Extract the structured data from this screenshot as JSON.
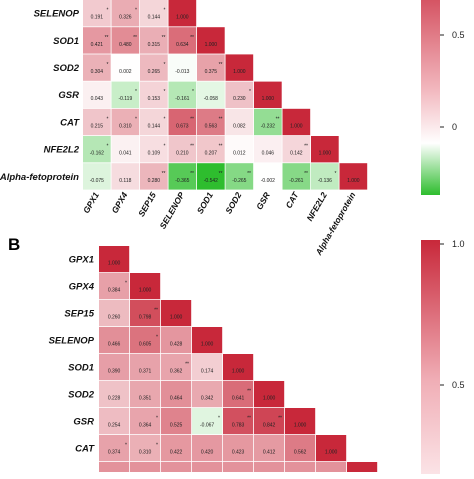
{
  "chart_data": [
    {
      "type": "heatmap",
      "panel_label": "",
      "row_labels": [
        "SELENOP",
        "SOD1",
        "SOD2",
        "GSR",
        "CAT",
        "NFE2L2",
        "Alpha-fetoprotein"
      ],
      "col_labels": [
        "GPX1",
        "GPX4",
        "SEP15",
        "SELENOP",
        "SOD1",
        "SOD2",
        "GSR",
        "CAT",
        "NFE2L2",
        "Alpha-fetoprotein"
      ],
      "rows": [
        {
          "values": [
            "0.191",
            "0.326",
            "0.144",
            "1.000"
          ],
          "stars": [
            "*",
            "*",
            "*",
            ""
          ]
        },
        {
          "values": [
            "0.421",
            "0.480",
            "0.315",
            "0.634",
            "1.000"
          ],
          "stars": [
            "**",
            "**",
            "**",
            "**",
            ""
          ]
        },
        {
          "values": [
            "0.304",
            "0.002",
            "0.265",
            "-0.013",
            "0.375",
            "1.000"
          ],
          "stars": [
            "*",
            "",
            "*",
            "",
            "**",
            ""
          ]
        },
        {
          "values": [
            "0.043",
            "-0.119",
            "0.153",
            "-0.161",
            "-0.058",
            "0.230",
            "1.000"
          ],
          "stars": [
            "",
            "*",
            "*",
            "*",
            "",
            "*",
            ""
          ]
        },
        {
          "values": [
            "0.215",
            "0.310",
            "0.144",
            "0.673",
            "0.563",
            "0.082",
            "-0.232",
            "1.000"
          ],
          "stars": [
            "*",
            "*",
            "*",
            "**",
            "**",
            "",
            "**",
            ""
          ]
        },
        {
          "values": [
            "-0.162",
            "0.041",
            "0.109",
            "0.210",
            "0.207",
            "0.012",
            "0.046",
            "0.142",
            "1.000"
          ],
          "stars": [
            "*",
            "",
            "*",
            "**",
            "**",
            "",
            "",
            "**",
            ""
          ]
        },
        {
          "values": [
            "-0.075",
            "0.118",
            "0.280",
            "-0.365",
            "-0.542",
            "-0.265",
            "-0.002",
            "-0.261",
            "-0.136",
            "1.000"
          ],
          "stars": [
            "",
            "",
            "**",
            "**",
            "**",
            "**",
            "",
            "**",
            "*",
            ""
          ]
        }
      ],
      "colorbar": {
        "ticks": [
          "0.5",
          "0"
        ],
        "colors": {
          "high": "#c8283a",
          "mid": "#ffffff",
          "low": "#2ebd2e"
        }
      }
    },
    {
      "type": "heatmap",
      "panel_label": "B",
      "row_labels": [
        "GPX1",
        "GPX4",
        "SEP15",
        "SELENOP",
        "SOD1",
        "SOD2",
        "GSR",
        "CAT"
      ],
      "col_labels": [],
      "rows": [
        {
          "values": [
            "1.000"
          ],
          "stars": [
            ""
          ]
        },
        {
          "values": [
            "0.384",
            "1.000"
          ],
          "stars": [
            "*",
            ""
          ]
        },
        {
          "values": [
            "0.260",
            "0.798",
            "1.000"
          ],
          "stars": [
            "",
            "**",
            ""
          ]
        },
        {
          "values": [
            "0.466",
            "0.605",
            "0.428",
            "1.000"
          ],
          "stars": [
            "",
            "*",
            "",
            ""
          ]
        },
        {
          "values": [
            "0.390",
            "0.371",
            "0.362",
            "0.174",
            "1.000"
          ],
          "stars": [
            "",
            "",
            "**",
            "",
            ""
          ]
        },
        {
          "values": [
            "0.228",
            "0.351",
            "0.464",
            "0.342",
            "0.641",
            "1.000"
          ],
          "stars": [
            "",
            "",
            "",
            "",
            "**",
            ""
          ]
        },
        {
          "values": [
            "0.254",
            "0.364",
            "0.525",
            "-0.067",
            "0.783",
            "0.842",
            "1.000"
          ],
          "stars": [
            "",
            "*",
            "",
            "*",
            "**",
            "**",
            ""
          ]
        },
        {
          "values": [
            "0.374",
            "0.310",
            "0.422",
            "0.420",
            "0.423",
            "0.412",
            "0.562",
            "1.000"
          ],
          "stars": [
            "*",
            "*",
            "",
            "",
            "",
            "",
            "",
            ""
          ]
        }
      ],
      "colorbar": {
        "ticks": [
          "1.0",
          "0.5"
        ],
        "colors": {
          "high": "#c8283a",
          "mid": "#ffffff",
          "low": "#2ebd2e"
        }
      }
    }
  ]
}
